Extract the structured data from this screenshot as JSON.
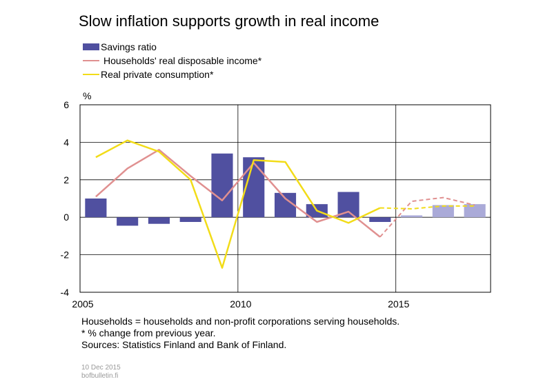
{
  "title": "Slow inflation supports growth in real income",
  "legend": [
    {
      "label": "Savings ratio",
      "kind": "bar",
      "color": "#5050a0"
    },
    {
      "label": "Households' real disposable income*",
      "kind": "line",
      "color": "#e09090"
    },
    {
      "label": "Real private consumption*",
      "kind": "line",
      "color": "#f2dc18"
    }
  ],
  "chart_data": {
    "type": "bar",
    "unit_label": "%",
    "ylim": [
      -4,
      6
    ],
    "yticks": [
      -4,
      -2,
      0,
      2,
      4,
      6
    ],
    "xticks": [
      2005,
      2010,
      2015
    ],
    "grid": true,
    "legend_position": "top-left",
    "categories": [
      2005,
      2006,
      2007,
      2008,
      2009,
      2010,
      2011,
      2012,
      2013,
      2014,
      2015,
      2016,
      2017
    ],
    "forecast_from": 2015,
    "series": [
      {
        "name": "Savings ratio",
        "kind": "bar",
        "color": "#5050a0",
        "forecast_color": "#aaaad8",
        "values": [
          1.0,
          -0.45,
          -0.35,
          -0.25,
          3.4,
          3.2,
          1.3,
          0.7,
          1.35,
          -0.25,
          0.1,
          0.65,
          0.7
        ]
      },
      {
        "name": "Households' real disposable income*",
        "kind": "line",
        "color": "#e09090",
        "values": [
          1.1,
          2.6,
          3.6,
          2.2,
          0.9,
          2.9,
          1.0,
          -0.25,
          0.3,
          -1.05,
          0.85,
          1.05,
          0.65
        ]
      },
      {
        "name": "Real private consumption*",
        "kind": "line",
        "color": "#f2dc18",
        "values": [
          3.2,
          4.1,
          3.5,
          2.0,
          -2.7,
          3.05,
          2.95,
          0.35,
          -0.3,
          0.5,
          0.45,
          0.6,
          0.6
        ]
      }
    ]
  },
  "notes": [
    "Households = households and non-profit corporations serving households.",
    "* % change from previous year.",
    "Sources: Statistics Finland  and Bank of Finland."
  ],
  "footer": {
    "date": "10 Dec 2015",
    "site": "bofbulletin.fi"
  }
}
